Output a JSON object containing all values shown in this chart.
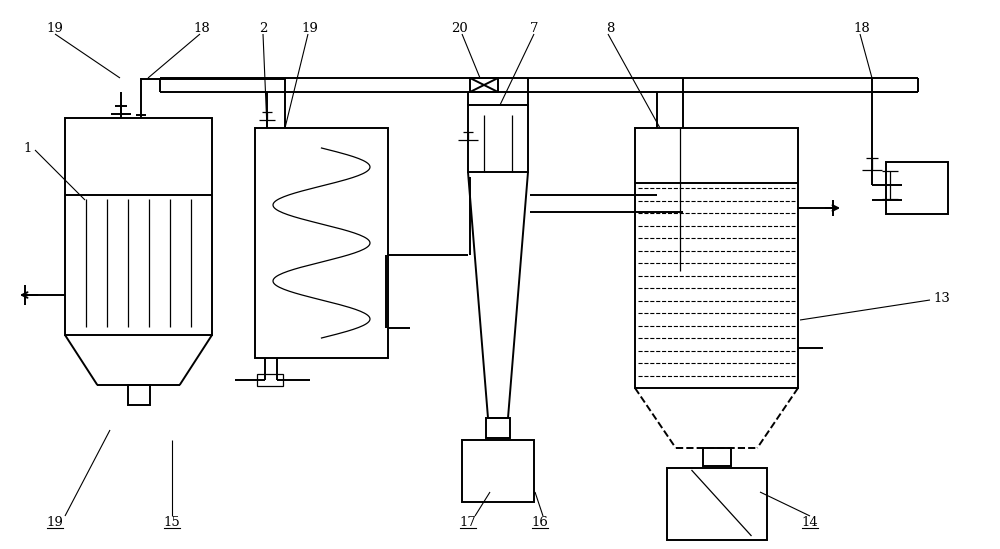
{
  "figsize": [
    10.0,
    5.49
  ],
  "dpi": 100,
  "bg": "#ffffff",
  "lc": "#000000",
  "lw": 1.4,
  "lwt": 0.9
}
